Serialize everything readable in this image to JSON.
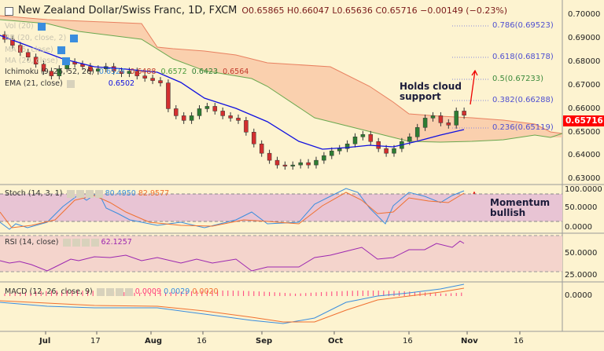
{
  "header": {
    "symbol": "New Zealand Dollar/Swiss Franc, 1D, FXCM",
    "open": "O0.65865",
    "high": "H0.66047",
    "low": "L0.65636",
    "close": "C0.65716",
    "change": "−0.00149 (−0.23%)"
  },
  "legend": {
    "vol": "Vol (20)",
    "bb": "BB (20, close, 2)",
    "ma5": "MA (5, close)",
    "ma20": "MA (20, close)",
    "ichimoku": {
      "label": "Ichimoku (9, 26, 52, 26)",
      "v1": "0.6524",
      "v2": "0.6488",
      "v3": "0.6572",
      "v4": "0.6423",
      "v5": "0.6564"
    },
    "ema": {
      "label": "EMA (21, close)",
      "v": "0.6502"
    },
    "stoch": {
      "label": "Stoch (14, 3, 1)",
      "k": "80.4950",
      "d": "82.9577"
    },
    "rsi": {
      "label": "RSI (14, close)",
      "v": "62.1257"
    },
    "macd": {
      "label": "MACD (12, 26, close, 9)",
      "hist": "0.0009",
      "macd": "0.0029",
      "signal": "0.0020"
    }
  },
  "fib": [
    {
      "label": "0.786(0.69523)",
      "color": "#5050d0"
    },
    {
      "label": "0.618(0.68178)",
      "color": "#5050d0"
    },
    {
      "label": "0.5(0.67233)",
      "color": "#3c8a3c"
    },
    {
      "label": "0.382(0.66288)",
      "color": "#5050d0"
    },
    {
      "label": "0.236(0.65119)",
      "color": "#5050d0"
    }
  ],
  "annotations": {
    "cloud": "Holds cloud support",
    "momentum": "Momentum bullish"
  },
  "price_axis": [
    "0.70000",
    "0.69000",
    "0.68000",
    "0.67000",
    "0.66000",
    "0.65000",
    "0.64000",
    "0.63000"
  ],
  "last_price": "0.65716",
  "stoch_axis": [
    "100.0000",
    "50.0000",
    "0.0000"
  ],
  "rsi_axis": [
    "50.0000",
    "25.0000"
  ],
  "macd_axis": [
    "0.0000"
  ],
  "time_axis": [
    "Jul",
    "17",
    "Aug",
    "16",
    "Sep",
    "Oct",
    "16",
    "Nov",
    "16"
  ],
  "colors": {
    "up": "#2e7d32",
    "down": "#d32f2f",
    "ema": "#1010e0",
    "cloud": "#f9c9a8",
    "last": "#ff0000"
  },
  "closes": [
    0.6896,
    0.687,
    0.684,
    0.682,
    0.679,
    0.676,
    0.674,
    0.677,
    0.68,
    0.679,
    0.678,
    0.676,
    0.677,
    0.678,
    0.676,
    0.675,
    0.676,
    0.674,
    0.673,
    0.672,
    0.671,
    0.66,
    0.657,
    0.655,
    0.657,
    0.66,
    0.661,
    0.659,
    0.657,
    0.656,
    0.655,
    0.65,
    0.645,
    0.641,
    0.638,
    0.636,
    0.6355,
    0.636,
    0.637,
    0.636,
    0.638,
    0.64,
    0.642,
    0.643,
    0.645,
    0.648,
    0.649,
    0.646,
    0.643,
    0.641,
    0.643,
    0.646,
    0.648,
    0.652,
    0.656,
    0.657,
    0.654,
    0.653,
    0.659,
    0.6572
  ]
}
